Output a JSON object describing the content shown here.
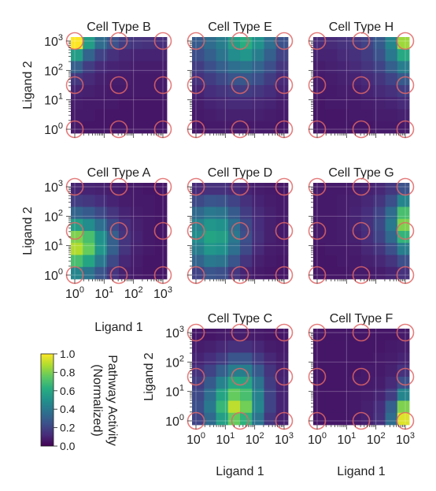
{
  "figure": {
    "colorbar": {
      "label_line1": "Pathway Activity",
      "label_line2": "(Normalized)",
      "ticks": [
        "1.0",
        "0.8",
        "0.6",
        "0.4",
        "0.2",
        "0.0"
      ]
    }
  },
  "chart_data": {
    "type": "heatmap",
    "xlabel": "Ligand 1",
    "ylabel": "Ligand 2",
    "scale": "log",
    "tick_labels": [
      "10^0",
      "10^1",
      "10^2",
      "10^3"
    ],
    "x_range": [
      1,
      1000
    ],
    "y_range": [
      1,
      1000
    ],
    "grid": true,
    "colormap": "viridis",
    "color_range": [
      0.0,
      1.0
    ],
    "marker_positions_log10": [
      0,
      1.5,
      3
    ],
    "panels": [
      {
        "title": "Cell Type B",
        "values": [
          [
            1.0,
            0.55,
            0.35,
            0.25,
            0.18,
            0.15,
            0.14,
            0.13
          ],
          [
            0.55,
            0.32,
            0.2,
            0.14,
            0.11,
            0.1,
            0.1,
            0.1
          ],
          [
            0.3,
            0.18,
            0.12,
            0.1,
            0.09,
            0.08,
            0.08,
            0.08
          ],
          [
            0.16,
            0.12,
            0.09,
            0.08,
            0.08,
            0.07,
            0.07,
            0.07
          ],
          [
            0.1,
            0.09,
            0.08,
            0.07,
            0.07,
            0.07,
            0.07,
            0.07
          ],
          [
            0.08,
            0.07,
            0.07,
            0.07,
            0.06,
            0.06,
            0.06,
            0.06
          ],
          [
            0.07,
            0.07,
            0.06,
            0.06,
            0.06,
            0.06,
            0.06,
            0.06
          ],
          [
            0.07,
            0.06,
            0.06,
            0.06,
            0.06,
            0.06,
            0.06,
            0.06
          ]
        ]
      },
      {
        "title": "Cell Type E",
        "values": [
          [
            0.28,
            0.35,
            0.42,
            0.55,
            0.62,
            0.5,
            0.36,
            0.25
          ],
          [
            0.24,
            0.3,
            0.38,
            0.48,
            0.52,
            0.42,
            0.3,
            0.2
          ],
          [
            0.18,
            0.24,
            0.3,
            0.36,
            0.38,
            0.32,
            0.24,
            0.16
          ],
          [
            0.14,
            0.18,
            0.22,
            0.26,
            0.27,
            0.24,
            0.18,
            0.12
          ],
          [
            0.1,
            0.13,
            0.15,
            0.17,
            0.18,
            0.16,
            0.13,
            0.1
          ],
          [
            0.08,
            0.1,
            0.11,
            0.12,
            0.12,
            0.11,
            0.1,
            0.08
          ],
          [
            0.07,
            0.08,
            0.09,
            0.09,
            0.09,
            0.09,
            0.08,
            0.07
          ],
          [
            0.06,
            0.07,
            0.07,
            0.07,
            0.07,
            0.07,
            0.07,
            0.06
          ]
        ]
      },
      {
        "title": "Cell Type H",
        "values": [
          [
            0.12,
            0.12,
            0.14,
            0.16,
            0.2,
            0.28,
            0.45,
            0.85
          ],
          [
            0.1,
            0.1,
            0.12,
            0.14,
            0.18,
            0.25,
            0.4,
            0.6
          ],
          [
            0.08,
            0.09,
            0.1,
            0.12,
            0.15,
            0.2,
            0.3,
            0.42
          ],
          [
            0.07,
            0.08,
            0.09,
            0.1,
            0.12,
            0.15,
            0.2,
            0.28
          ],
          [
            0.07,
            0.07,
            0.08,
            0.08,
            0.1,
            0.12,
            0.14,
            0.18
          ],
          [
            0.06,
            0.07,
            0.07,
            0.07,
            0.08,
            0.09,
            0.1,
            0.12
          ],
          [
            0.06,
            0.06,
            0.06,
            0.07,
            0.07,
            0.08,
            0.08,
            0.09
          ],
          [
            0.06,
            0.06,
            0.06,
            0.06,
            0.06,
            0.07,
            0.07,
            0.07
          ]
        ]
      },
      {
        "title": "Cell Type A",
        "values": [
          [
            0.1,
            0.1,
            0.09,
            0.08,
            0.07,
            0.07,
            0.06,
            0.06
          ],
          [
            0.18,
            0.16,
            0.13,
            0.1,
            0.08,
            0.07,
            0.07,
            0.06
          ],
          [
            0.32,
            0.28,
            0.22,
            0.15,
            0.1,
            0.08,
            0.07,
            0.06
          ],
          [
            0.55,
            0.48,
            0.36,
            0.22,
            0.13,
            0.09,
            0.07,
            0.06
          ],
          [
            0.8,
            0.7,
            0.5,
            0.3,
            0.15,
            0.1,
            0.07,
            0.06
          ],
          [
            0.88,
            0.76,
            0.52,
            0.3,
            0.15,
            0.09,
            0.07,
            0.06
          ],
          [
            0.7,
            0.58,
            0.4,
            0.22,
            0.11,
            0.08,
            0.06,
            0.06
          ],
          [
            0.45,
            0.38,
            0.26,
            0.15,
            0.09,
            0.07,
            0.06,
            0.06
          ]
        ]
      },
      {
        "title": "Cell Type D",
        "values": [
          [
            0.12,
            0.14,
            0.14,
            0.12,
            0.1,
            0.08,
            0.07,
            0.06
          ],
          [
            0.22,
            0.26,
            0.25,
            0.2,
            0.14,
            0.1,
            0.08,
            0.07
          ],
          [
            0.34,
            0.4,
            0.38,
            0.28,
            0.18,
            0.12,
            0.09,
            0.07
          ],
          [
            0.44,
            0.52,
            0.5,
            0.36,
            0.22,
            0.13,
            0.09,
            0.07
          ],
          [
            0.48,
            0.58,
            0.56,
            0.4,
            0.24,
            0.14,
            0.09,
            0.07
          ],
          [
            0.42,
            0.52,
            0.5,
            0.36,
            0.22,
            0.12,
            0.08,
            0.07
          ],
          [
            0.32,
            0.4,
            0.38,
            0.26,
            0.15,
            0.09,
            0.07,
            0.06
          ],
          [
            0.2,
            0.26,
            0.24,
            0.16,
            0.1,
            0.07,
            0.06,
            0.06
          ]
        ]
      },
      {
        "title": "Cell Type G",
        "values": [
          [
            0.07,
            0.07,
            0.07,
            0.08,
            0.09,
            0.11,
            0.16,
            0.25
          ],
          [
            0.07,
            0.07,
            0.08,
            0.09,
            0.11,
            0.15,
            0.24,
            0.45
          ],
          [
            0.07,
            0.07,
            0.08,
            0.1,
            0.13,
            0.2,
            0.35,
            0.7
          ],
          [
            0.07,
            0.07,
            0.08,
            0.1,
            0.14,
            0.22,
            0.4,
            0.8
          ],
          [
            0.07,
            0.07,
            0.08,
            0.09,
            0.13,
            0.2,
            0.34,
            0.65
          ],
          [
            0.06,
            0.07,
            0.07,
            0.08,
            0.11,
            0.15,
            0.24,
            0.42
          ],
          [
            0.06,
            0.06,
            0.07,
            0.07,
            0.09,
            0.11,
            0.15,
            0.24
          ],
          [
            0.06,
            0.06,
            0.06,
            0.07,
            0.07,
            0.08,
            0.1,
            0.14
          ]
        ]
      },
      {
        "title": "Cell Type C",
        "values": [
          [
            0.06,
            0.06,
            0.07,
            0.08,
            0.08,
            0.07,
            0.06,
            0.06
          ],
          [
            0.08,
            0.09,
            0.11,
            0.14,
            0.14,
            0.11,
            0.08,
            0.07
          ],
          [
            0.1,
            0.13,
            0.18,
            0.26,
            0.26,
            0.18,
            0.11,
            0.08
          ],
          [
            0.14,
            0.2,
            0.3,
            0.42,
            0.42,
            0.28,
            0.15,
            0.09
          ],
          [
            0.18,
            0.28,
            0.44,
            0.6,
            0.58,
            0.38,
            0.18,
            0.1
          ],
          [
            0.22,
            0.36,
            0.58,
            0.76,
            0.7,
            0.44,
            0.2,
            0.1
          ],
          [
            0.24,
            0.4,
            0.66,
            0.9,
            0.78,
            0.46,
            0.2,
            0.1
          ],
          [
            0.2,
            0.34,
            0.56,
            0.76,
            0.64,
            0.38,
            0.16,
            0.09
          ]
        ]
      },
      {
        "title": "Cell Type F",
        "values": [
          [
            0.06,
            0.06,
            0.06,
            0.06,
            0.06,
            0.06,
            0.06,
            0.07
          ],
          [
            0.06,
            0.06,
            0.06,
            0.06,
            0.06,
            0.06,
            0.07,
            0.08
          ],
          [
            0.06,
            0.06,
            0.06,
            0.06,
            0.06,
            0.07,
            0.08,
            0.1
          ],
          [
            0.06,
            0.06,
            0.06,
            0.06,
            0.07,
            0.07,
            0.09,
            0.14
          ],
          [
            0.06,
            0.06,
            0.06,
            0.07,
            0.07,
            0.08,
            0.12,
            0.24
          ],
          [
            0.06,
            0.06,
            0.06,
            0.07,
            0.08,
            0.1,
            0.18,
            0.45
          ],
          [
            0.06,
            0.06,
            0.06,
            0.07,
            0.09,
            0.13,
            0.3,
            0.8
          ],
          [
            0.06,
            0.06,
            0.06,
            0.07,
            0.09,
            0.14,
            0.35,
            0.95
          ]
        ]
      }
    ]
  }
}
